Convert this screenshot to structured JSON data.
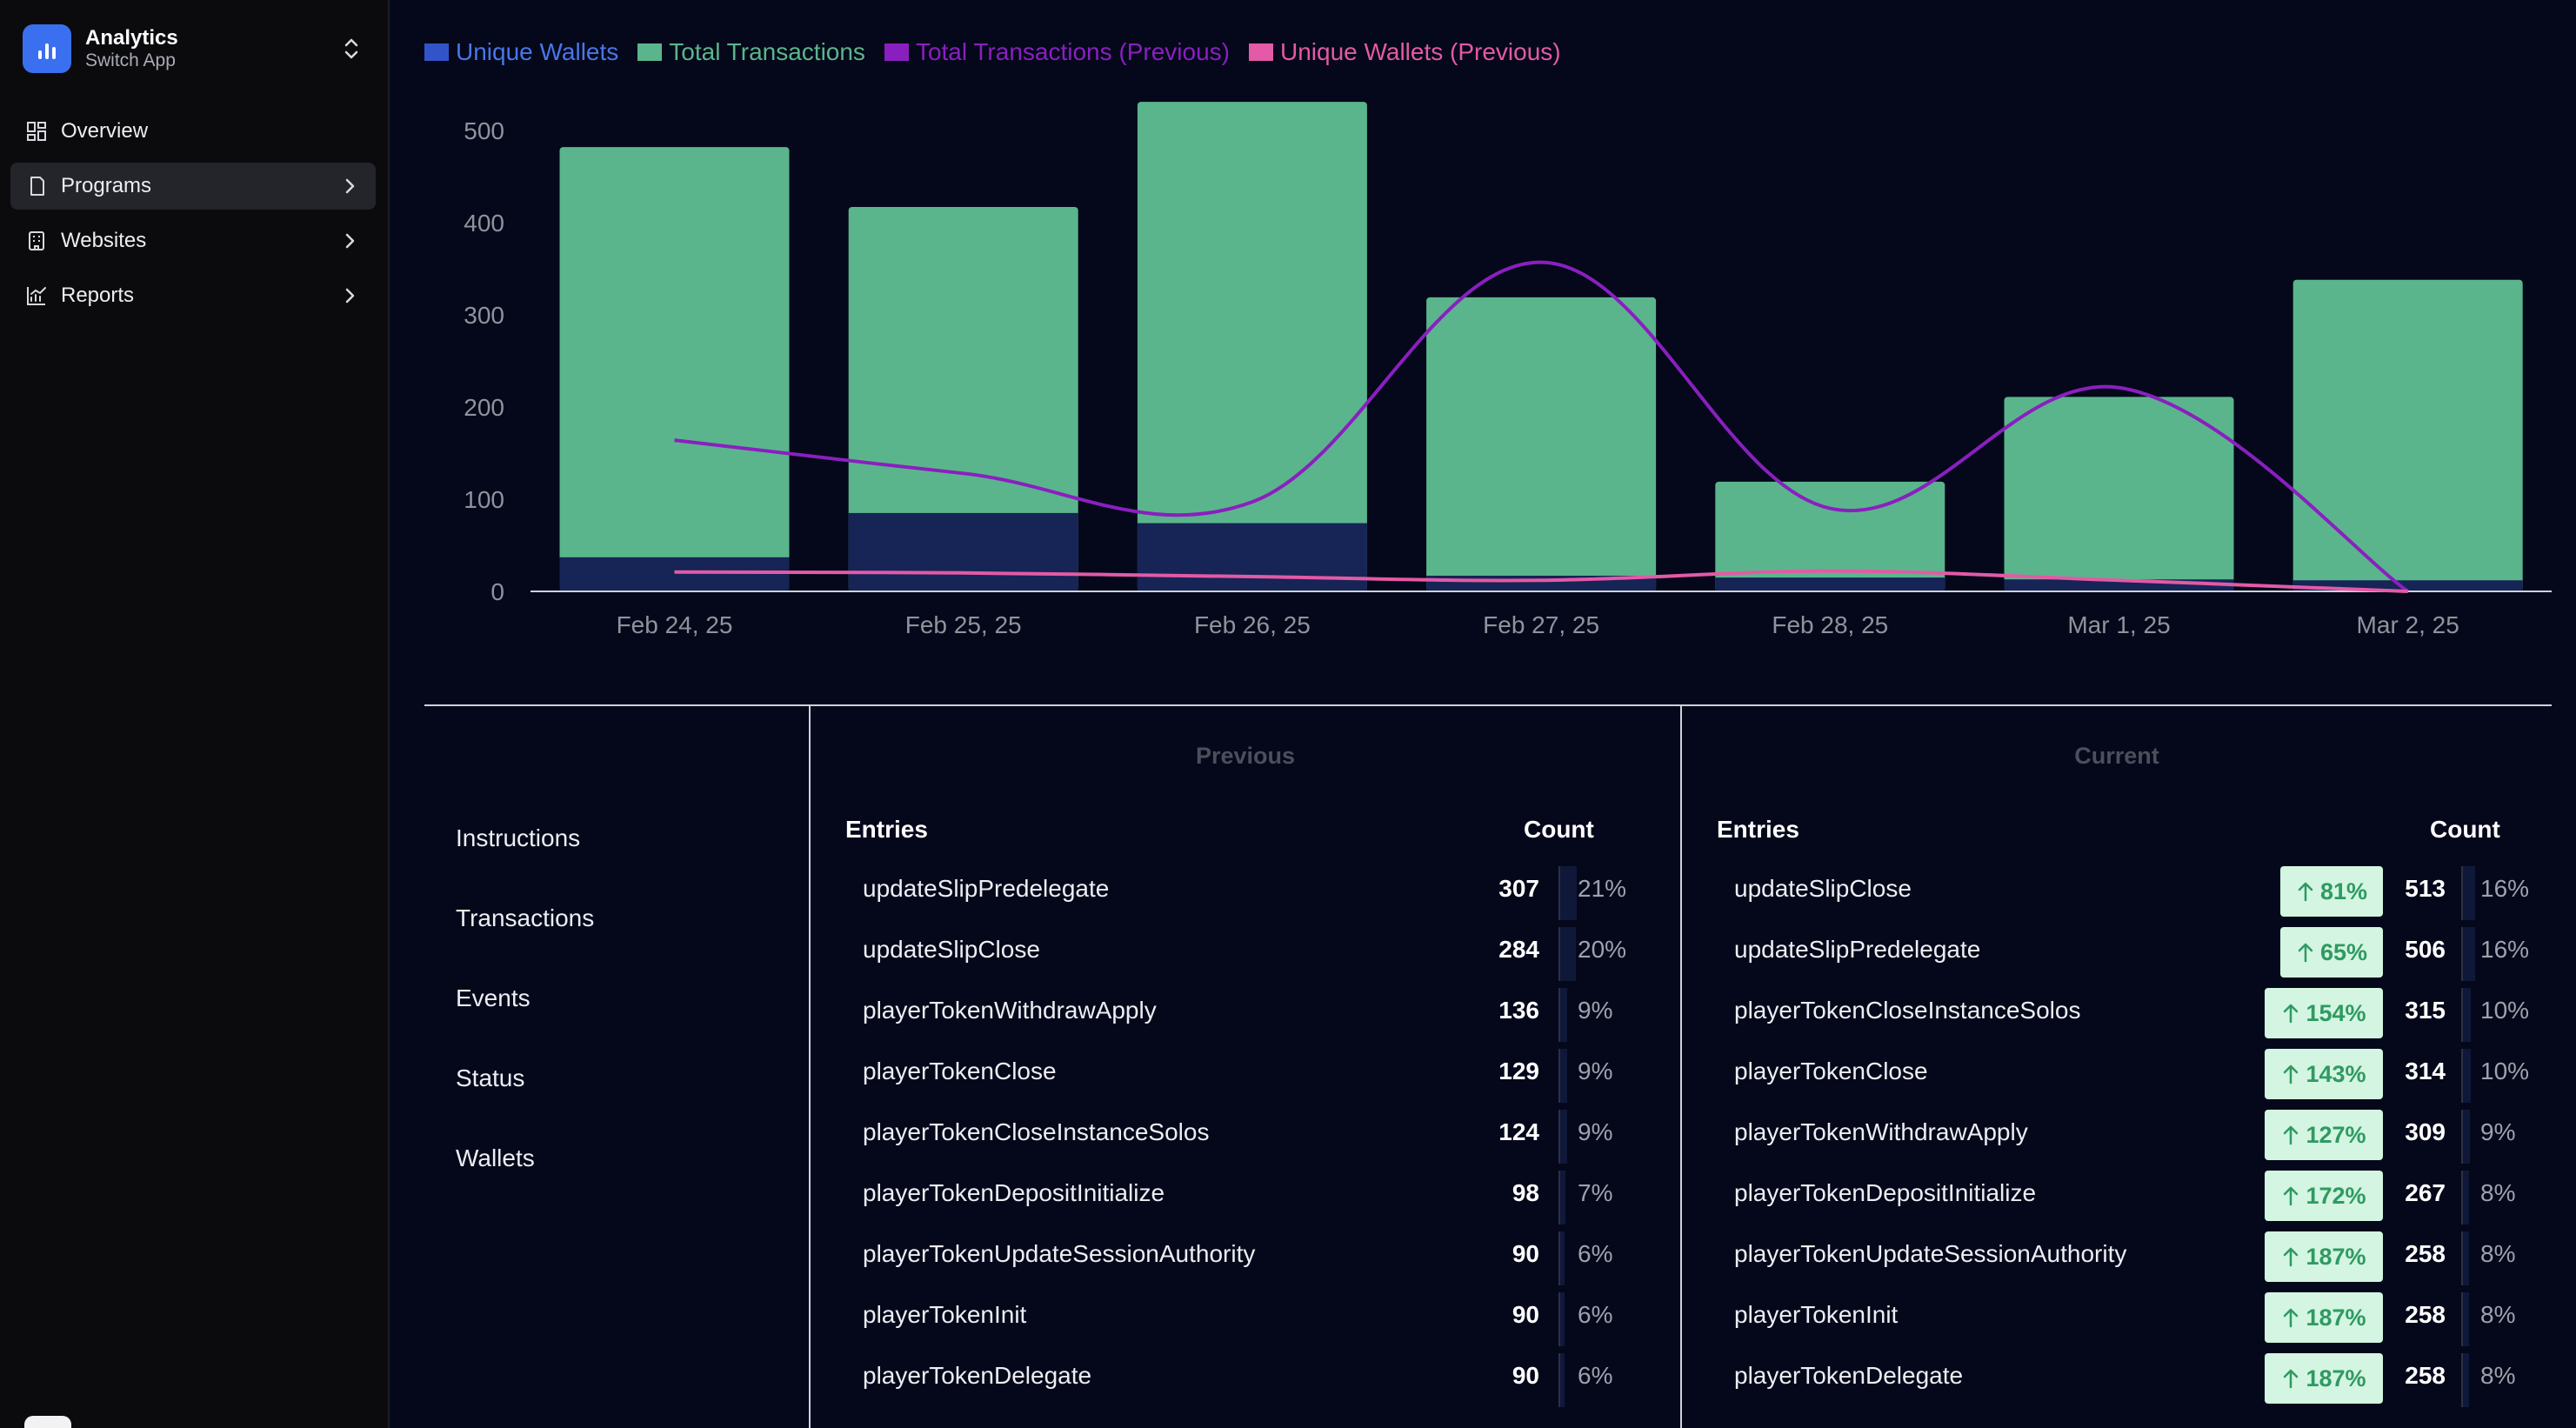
{
  "app": {
    "name": "Analytics",
    "subtitle": "Switch App"
  },
  "nav": [
    {
      "label": "Overview",
      "icon": "grid-icon",
      "active": false,
      "chevron": false
    },
    {
      "label": "Programs",
      "icon": "file-icon",
      "active": true,
      "chevron": true
    },
    {
      "label": "Websites",
      "icon": "building-icon",
      "active": false,
      "chevron": true
    },
    {
      "label": "Reports",
      "icon": "chart-line-icon",
      "active": false,
      "chevron": true
    }
  ],
  "chart_data": {
    "type": "bar",
    "categories": [
      "Feb 24, 25",
      "Feb 25, 25",
      "Feb 26, 25",
      "Feb 27, 25",
      "Feb 28, 25",
      "Mar 1, 25",
      "Mar 2, 25"
    ],
    "series": [
      {
        "name": "Unique Wallets",
        "kind": "bar",
        "color": "#162456",
        "values": [
          37,
          85,
          74,
          17,
          15,
          13,
          12
        ]
      },
      {
        "name": "Total Transactions",
        "kind": "bar",
        "color": "#5bb58c",
        "values": [
          482,
          417,
          531,
          319,
          119,
          211,
          338
        ]
      },
      {
        "name": "Total Transactions (Previous)",
        "kind": "line",
        "color": "#8a1fc0",
        "values": [
          164,
          128,
          97,
          357,
          90,
          221,
          0
        ]
      },
      {
        "name": "Unique Wallets (Previous)",
        "kind": "line",
        "color": "#e35aa6",
        "values": [
          21,
          20,
          16,
          12,
          22,
          12,
          0
        ]
      }
    ],
    "yticks": [
      0,
      100,
      200,
      300,
      400,
      500
    ],
    "ylim": [
      0,
      550
    ],
    "legend_position": "top-left",
    "grid": false
  },
  "tabs": [
    "Instructions",
    "Transactions",
    "Events",
    "Status",
    "Wallets"
  ],
  "previous": {
    "title": "Previous",
    "col_entries": "Entries",
    "col_count": "Count",
    "rows": [
      {
        "name": "updateSlipPredelegate",
        "count": "307",
        "pct": "21%",
        "share": 0.21
      },
      {
        "name": "updateSlipClose",
        "count": "284",
        "pct": "20%",
        "share": 0.2
      },
      {
        "name": "playerTokenWithdrawApply",
        "count": "136",
        "pct": "9%",
        "share": 0.09
      },
      {
        "name": "playerTokenClose",
        "count": "129",
        "pct": "9%",
        "share": 0.09
      },
      {
        "name": "playerTokenCloseInstanceSolos",
        "count": "124",
        "pct": "9%",
        "share": 0.09
      },
      {
        "name": "playerTokenDepositInitialize",
        "count": "98",
        "pct": "7%",
        "share": 0.07
      },
      {
        "name": "playerTokenUpdateSessionAuthority",
        "count": "90",
        "pct": "6%",
        "share": 0.06
      },
      {
        "name": "playerTokenInit",
        "count": "90",
        "pct": "6%",
        "share": 0.06
      },
      {
        "name": "playerTokenDelegate",
        "count": "90",
        "pct": "6%",
        "share": 0.06
      }
    ]
  },
  "current": {
    "title": "Current",
    "col_entries": "Entries",
    "col_count": "Count",
    "rows": [
      {
        "name": "updateSlipClose",
        "change": "81%",
        "count": "513",
        "pct": "16%",
        "share": 0.16
      },
      {
        "name": "updateSlipPredelegate",
        "change": "65%",
        "count": "506",
        "pct": "16%",
        "share": 0.16
      },
      {
        "name": "playerTokenCloseInstanceSolos",
        "change": "154%",
        "count": "315",
        "pct": "10%",
        "share": 0.1
      },
      {
        "name": "playerTokenClose",
        "change": "143%",
        "count": "314",
        "pct": "10%",
        "share": 0.1
      },
      {
        "name": "playerTokenWithdrawApply",
        "change": "127%",
        "count": "309",
        "pct": "9%",
        "share": 0.09
      },
      {
        "name": "playerTokenDepositInitialize",
        "change": "172%",
        "count": "267",
        "pct": "8%",
        "share": 0.08
      },
      {
        "name": "playerTokenUpdateSessionAuthority",
        "change": "187%",
        "count": "258",
        "pct": "8%",
        "share": 0.08
      },
      {
        "name": "playerTokenInit",
        "change": "187%",
        "count": "258",
        "pct": "8%",
        "share": 0.08
      },
      {
        "name": "playerTokenDelegate",
        "change": "187%",
        "count": "258",
        "pct": "8%",
        "share": 0.08
      }
    ]
  }
}
